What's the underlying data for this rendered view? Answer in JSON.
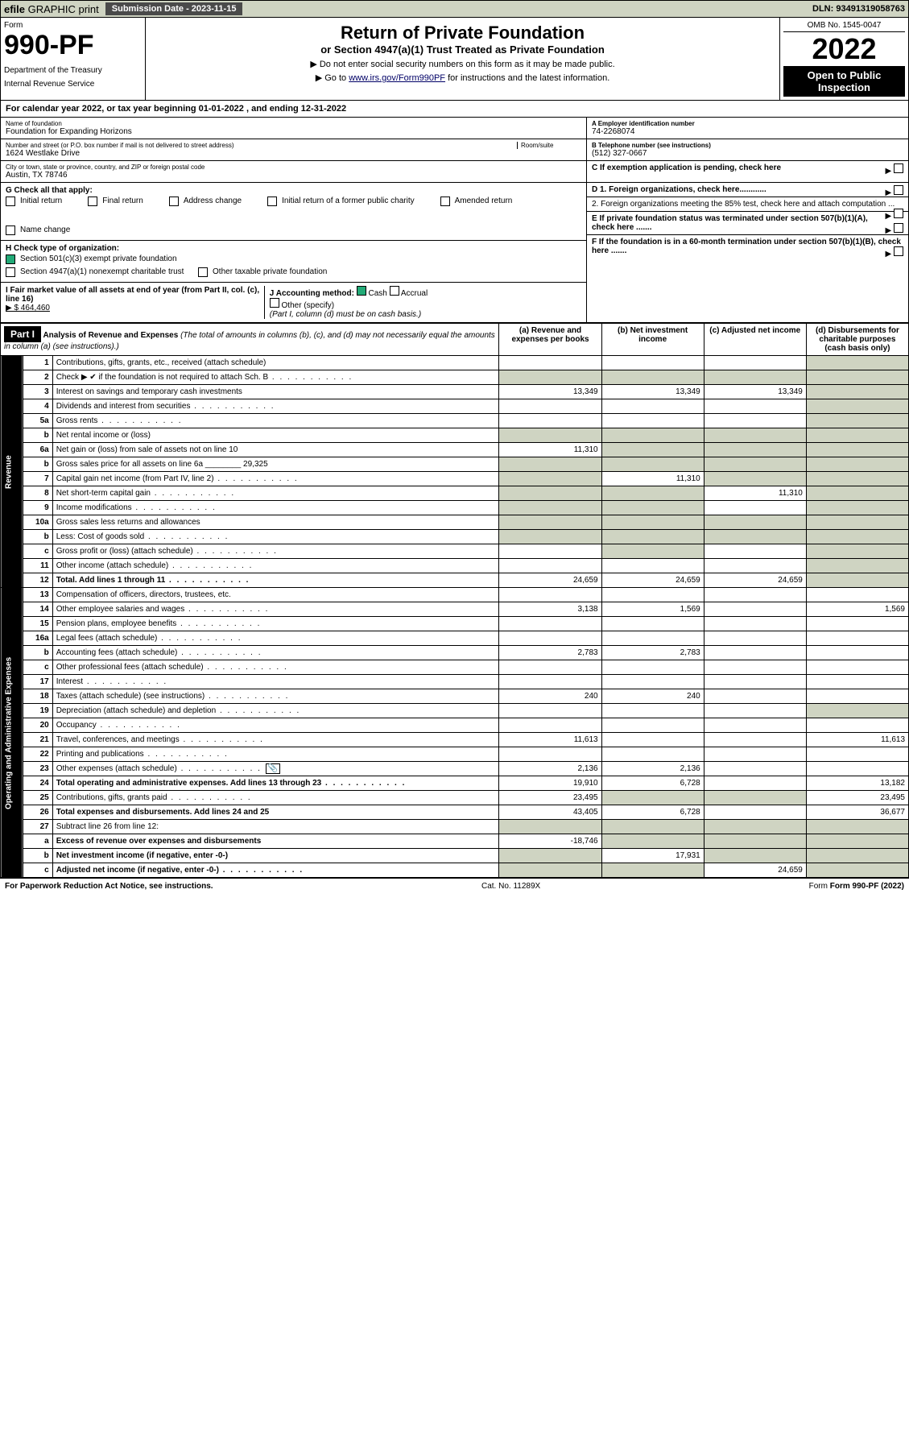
{
  "topbar": {
    "efile_prefix": "efile",
    "efile_rest": " GRAPHIC print",
    "submission_label": "Submission Date - 2023-11-15",
    "dln": "DLN: 93491319058763"
  },
  "header": {
    "form_word": "Form",
    "form_number": "990-PF",
    "dept1": "Department of the Treasury",
    "dept2": "Internal Revenue Service",
    "title": "Return of Private Foundation",
    "subtitle": "or Section 4947(a)(1) Trust Treated as Private Foundation",
    "instr1": "▶ Do not enter social security numbers on this form as it may be made public.",
    "instr2_a": "▶ Go to ",
    "instr2_link": "www.irs.gov/Form990PF",
    "instr2_b": " for instructions and the latest information.",
    "omb": "OMB No. 1545-0047",
    "year": "2022",
    "open_to": "Open to Public Inspection"
  },
  "calendar": "For calendar year 2022, or tax year beginning 01-01-2022        , and ending 12-31-2022",
  "entity": {
    "name_label": "Name of foundation",
    "name": "Foundation for Expanding Horizons",
    "addr_label": "Number and street (or P.O. box number if mail is not delivered to street address)",
    "room_label": "Room/suite",
    "street": "1624 Westlake Drive",
    "city_label": "City or town, state or province, country, and ZIP or foreign postal code",
    "city": "Austin, TX  78746",
    "a_label": "A Employer identification number",
    "a_val": "74-2268074",
    "b_label": "B Telephone number (see instructions)",
    "b_val": "(512) 327-0667",
    "c_label": "C If exemption application is pending, check here"
  },
  "g": {
    "label": "G Check all that apply:",
    "opts": [
      "Initial return",
      "Final return",
      "Address change",
      "Initial return of a former public charity",
      "Amended return",
      "Name change"
    ]
  },
  "h": {
    "label": "H Check type of organization:",
    "o1": "Section 501(c)(3) exempt private foundation",
    "o2": "Section 4947(a)(1) nonexempt charitable trust",
    "o3": "Other taxable private foundation"
  },
  "i": {
    "label": "I Fair market value of all assets at end of year (from Part II, col. (c), line 16)",
    "val": "▶ $  464,460"
  },
  "j": {
    "label": "J Accounting method:",
    "cash": "Cash",
    "accrual": "Accrual",
    "other": "Other (specify)",
    "note": "(Part I, column (d) must be on cash basis.)"
  },
  "d": {
    "d1": "D 1. Foreign organizations, check here............",
    "d2": "2. Foreign organizations meeting the 85% test, check here and attach computation ...",
    "e": "E  If private foundation status was terminated under section 507(b)(1)(A), check here .......",
    "f": "F  If the foundation is in a 60-month termination under section 507(b)(1)(B), check here ......."
  },
  "part1": {
    "label": "Part I",
    "title": "Analysis of Revenue and Expenses",
    "note": " (The total of amounts in columns (b), (c), and (d) may not necessarily equal the amounts in column (a) (see instructions).)",
    "cols": {
      "a": "(a) Revenue and expenses per books",
      "b": "(b) Net investment income",
      "c": "(c) Adjusted net income",
      "d": "(d) Disbursements for charitable purposes (cash basis only)"
    }
  },
  "side_rev": "Revenue",
  "side_exp": "Operating and Administrative Expenses",
  "rows": [
    {
      "ln": "1",
      "desc": "Contributions, gifts, grants, etc., received (attach schedule)",
      "a": "",
      "b": "",
      "c": "",
      "d": "",
      "shade": [
        "d"
      ]
    },
    {
      "ln": "2",
      "desc": "Check ▶ ✔ if the foundation is not required to attach Sch. B",
      "a": "",
      "b": "",
      "c": "",
      "d": "",
      "shade": [
        "a",
        "b",
        "c",
        "d"
      ],
      "dots": true
    },
    {
      "ln": "3",
      "desc": "Interest on savings and temporary cash investments",
      "a": "13,349",
      "b": "13,349",
      "c": "13,349",
      "d": "",
      "shade": [
        "d"
      ]
    },
    {
      "ln": "4",
      "desc": "Dividends and interest from securities",
      "a": "",
      "b": "",
      "c": "",
      "d": "",
      "shade": [
        "d"
      ],
      "dots": true
    },
    {
      "ln": "5a",
      "desc": "Gross rents",
      "a": "",
      "b": "",
      "c": "",
      "d": "",
      "shade": [
        "d"
      ],
      "dots": true
    },
    {
      "ln": "b",
      "desc": "Net rental income or (loss)",
      "a": "",
      "b": "",
      "c": "",
      "d": "",
      "shade": [
        "a",
        "b",
        "c",
        "d"
      ]
    },
    {
      "ln": "6a",
      "desc": "Net gain or (loss) from sale of assets not on line 10",
      "a": "11,310",
      "b": "",
      "c": "",
      "d": "",
      "shade": [
        "b",
        "c",
        "d"
      ]
    },
    {
      "ln": "b",
      "desc": "Gross sales price for all assets on line 6a ________ 29,325",
      "a": "",
      "b": "",
      "c": "",
      "d": "",
      "shade": [
        "a",
        "b",
        "c",
        "d"
      ]
    },
    {
      "ln": "7",
      "desc": "Capital gain net income (from Part IV, line 2)",
      "a": "",
      "b": "11,310",
      "c": "",
      "d": "",
      "shade": [
        "a",
        "c",
        "d"
      ],
      "dots": true
    },
    {
      "ln": "8",
      "desc": "Net short-term capital gain",
      "a": "",
      "b": "",
      "c": "11,310",
      "d": "",
      "shade": [
        "a",
        "b",
        "d"
      ],
      "dots": true
    },
    {
      "ln": "9",
      "desc": "Income modifications",
      "a": "",
      "b": "",
      "c": "",
      "d": "",
      "shade": [
        "a",
        "b",
        "d"
      ],
      "dots": true
    },
    {
      "ln": "10a",
      "desc": "Gross sales less returns and allowances",
      "a": "",
      "b": "",
      "c": "",
      "d": "",
      "shade": [
        "a",
        "b",
        "c",
        "d"
      ]
    },
    {
      "ln": "b",
      "desc": "Less: Cost of goods sold",
      "a": "",
      "b": "",
      "c": "",
      "d": "",
      "shade": [
        "a",
        "b",
        "c",
        "d"
      ],
      "dots": true
    },
    {
      "ln": "c",
      "desc": "Gross profit or (loss) (attach schedule)",
      "a": "",
      "b": "",
      "c": "",
      "d": "",
      "shade": [
        "b",
        "d"
      ],
      "dots": true
    },
    {
      "ln": "11",
      "desc": "Other income (attach schedule)",
      "a": "",
      "b": "",
      "c": "",
      "d": "",
      "shade": [
        "d"
      ],
      "dots": true
    },
    {
      "ln": "12",
      "desc": "Total. Add lines 1 through 11",
      "a": "24,659",
      "b": "24,659",
      "c": "24,659",
      "d": "",
      "shade": [
        "d"
      ],
      "bold": true,
      "dots": true
    },
    {
      "ln": "13",
      "desc": "Compensation of officers, directors, trustees, etc.",
      "a": "",
      "b": "",
      "c": "",
      "d": ""
    },
    {
      "ln": "14",
      "desc": "Other employee salaries and wages",
      "a": "3,138",
      "b": "1,569",
      "c": "",
      "d": "1,569",
      "dots": true
    },
    {
      "ln": "15",
      "desc": "Pension plans, employee benefits",
      "a": "",
      "b": "",
      "c": "",
      "d": "",
      "dots": true
    },
    {
      "ln": "16a",
      "desc": "Legal fees (attach schedule)",
      "a": "",
      "b": "",
      "c": "",
      "d": "",
      "dots": true
    },
    {
      "ln": "b",
      "desc": "Accounting fees (attach schedule)",
      "a": "2,783",
      "b": "2,783",
      "c": "",
      "d": "",
      "dots": true
    },
    {
      "ln": "c",
      "desc": "Other professional fees (attach schedule)",
      "a": "",
      "b": "",
      "c": "",
      "d": "",
      "dots": true
    },
    {
      "ln": "17",
      "desc": "Interest",
      "a": "",
      "b": "",
      "c": "",
      "d": "",
      "dots": true
    },
    {
      "ln": "18",
      "desc": "Taxes (attach schedule) (see instructions)",
      "a": "240",
      "b": "240",
      "c": "",
      "d": "",
      "dots": true
    },
    {
      "ln": "19",
      "desc": "Depreciation (attach schedule) and depletion",
      "a": "",
      "b": "",
      "c": "",
      "d": "",
      "shade": [
        "d"
      ],
      "dots": true
    },
    {
      "ln": "20",
      "desc": "Occupancy",
      "a": "",
      "b": "",
      "c": "",
      "d": "",
      "dots": true
    },
    {
      "ln": "21",
      "desc": "Travel, conferences, and meetings",
      "a": "11,613",
      "b": "",
      "c": "",
      "d": "11,613",
      "dots": true
    },
    {
      "ln": "22",
      "desc": "Printing and publications",
      "a": "",
      "b": "",
      "c": "",
      "d": "",
      "dots": true
    },
    {
      "ln": "23",
      "desc": "Other expenses (attach schedule)",
      "a": "2,136",
      "b": "2,136",
      "c": "",
      "d": "",
      "icon": true,
      "dots": true
    },
    {
      "ln": "24",
      "desc": "Total operating and administrative expenses. Add lines 13 through 23",
      "a": "19,910",
      "b": "6,728",
      "c": "",
      "d": "13,182",
      "bold": true,
      "dots": true
    },
    {
      "ln": "25",
      "desc": "Contributions, gifts, grants paid",
      "a": "23,495",
      "b": "",
      "c": "",
      "d": "23,495",
      "shade": [
        "b",
        "c"
      ],
      "dots": true
    },
    {
      "ln": "26",
      "desc": "Total expenses and disbursements. Add lines 24 and 25",
      "a": "43,405",
      "b": "6,728",
      "c": "",
      "d": "36,677",
      "bold": true
    },
    {
      "ln": "27",
      "desc": "Subtract line 26 from line 12:",
      "a": "",
      "b": "",
      "c": "",
      "d": "",
      "shade": [
        "a",
        "b",
        "c",
        "d"
      ]
    },
    {
      "ln": "a",
      "desc": "Excess of revenue over expenses and disbursements",
      "a": "-18,746",
      "b": "",
      "c": "",
      "d": "",
      "shade": [
        "b",
        "c",
        "d"
      ],
      "bold": true
    },
    {
      "ln": "b",
      "desc": "Net investment income (if negative, enter -0-)",
      "a": "",
      "b": "17,931",
      "c": "",
      "d": "",
      "shade": [
        "a",
        "c",
        "d"
      ],
      "bold": true
    },
    {
      "ln": "c",
      "desc": "Adjusted net income (if negative, enter -0-)",
      "a": "",
      "b": "",
      "c": "24,659",
      "d": "",
      "shade": [
        "a",
        "b",
        "d"
      ],
      "bold": true,
      "dots": true
    }
  ],
  "footer": {
    "left": "For Paperwork Reduction Act Notice, see instructions.",
    "mid": "Cat. No. 11289X",
    "right": "Form 990-PF (2022)"
  }
}
